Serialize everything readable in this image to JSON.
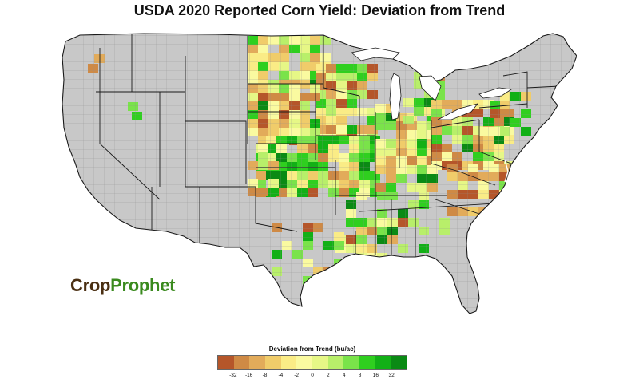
{
  "title": "USDA 2020 Reported Corn Yield: Deviation from Trend",
  "logo": {
    "part1": "Crop",
    "part2": "Prophet"
  },
  "legend": {
    "title": "Deviation from Trend (bu/ac)",
    "ticks": [
      "-32",
      "-16",
      "-8",
      "-4",
      "-2",
      "0",
      "2",
      "4",
      "8",
      "16",
      "32"
    ],
    "colors": [
      "#b5562a",
      "#cf8a45",
      "#e2ab5a",
      "#f0cc6a",
      "#faec86",
      "#fafaa0",
      "#e6f786",
      "#b8ef6a",
      "#7ae34a",
      "#2fcf1f",
      "#12b016",
      "#0a8a14"
    ]
  },
  "map": {
    "land_color": "#c8c8c8",
    "border_color": "#1a1a1a",
    "county_line_color": "#8a8a8a"
  }
}
